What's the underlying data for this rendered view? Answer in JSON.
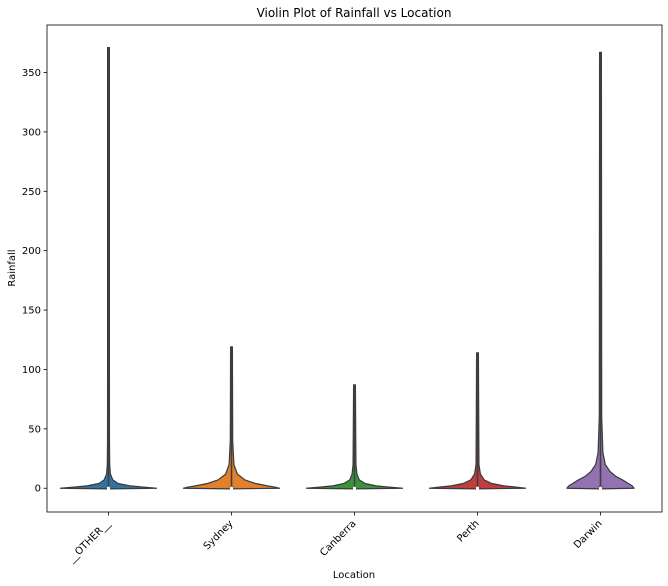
{
  "chart_data": {
    "type": "violin",
    "title": "Violin Plot of Rainfall vs Location",
    "xlabel": "Location",
    "ylabel": "Rainfall",
    "categories": [
      "__OTHER__",
      "Sydney",
      "Canberra",
      "Perth",
      "Darwin"
    ],
    "colors": [
      "#3274a1",
      "#e1812c",
      "#3a923a",
      "#c03d3e",
      "#9372b2"
    ],
    "ylim": [
      -20,
      390
    ],
    "yticks": [
      0,
      50,
      100,
      150,
      200,
      250,
      300,
      350
    ],
    "grid": false,
    "series": [
      {
        "category": "__OTHER__",
        "min": 0,
        "max": 371,
        "median": 0,
        "q1": 0,
        "q3": 0.8,
        "density": [
          [
            0,
            1.0
          ],
          [
            1,
            0.72
          ],
          [
            2,
            0.45
          ],
          [
            4,
            0.2
          ],
          [
            7,
            0.09
          ],
          [
            12,
            0.04
          ],
          [
            20,
            0.025
          ],
          [
            40,
            0.02
          ],
          [
            100,
            0.015
          ],
          [
            371,
            0.012
          ]
        ]
      },
      {
        "category": "Sydney",
        "min": 0,
        "max": 119,
        "median": 0,
        "q1": 0,
        "q3": 1.5,
        "density": [
          [
            0,
            1.0
          ],
          [
            1,
            0.9
          ],
          [
            2,
            0.75
          ],
          [
            4,
            0.5
          ],
          [
            7,
            0.28
          ],
          [
            12,
            0.12
          ],
          [
            20,
            0.05
          ],
          [
            40,
            0.025
          ],
          [
            119,
            0.015
          ]
        ]
      },
      {
        "category": "Canberra",
        "min": 0,
        "max": 87,
        "median": 0,
        "q1": 0,
        "q3": 0.6,
        "density": [
          [
            0,
            1.0
          ],
          [
            1,
            0.72
          ],
          [
            2,
            0.45
          ],
          [
            4,
            0.22
          ],
          [
            7,
            0.1
          ],
          [
            12,
            0.05
          ],
          [
            20,
            0.03
          ],
          [
            87,
            0.015
          ]
        ]
      },
      {
        "category": "Perth",
        "min": 0,
        "max": 114,
        "median": 0,
        "q1": 0,
        "q3": 0.6,
        "density": [
          [
            0,
            1.0
          ],
          [
            1,
            0.8
          ],
          [
            2,
            0.55
          ],
          [
            4,
            0.3
          ],
          [
            7,
            0.14
          ],
          [
            12,
            0.06
          ],
          [
            20,
            0.03
          ],
          [
            114,
            0.015
          ]
        ]
      },
      {
        "category": "Darwin",
        "min": 0,
        "max": 367,
        "median": 0,
        "q1": 0,
        "q3": 2,
        "density": [
          [
            0,
            0.7
          ],
          [
            2,
            0.66
          ],
          [
            4,
            0.58
          ],
          [
            7,
            0.46
          ],
          [
            10,
            0.32
          ],
          [
            14,
            0.2
          ],
          [
            20,
            0.1
          ],
          [
            30,
            0.05
          ],
          [
            60,
            0.025
          ],
          [
            367,
            0.012
          ]
        ]
      }
    ]
  }
}
